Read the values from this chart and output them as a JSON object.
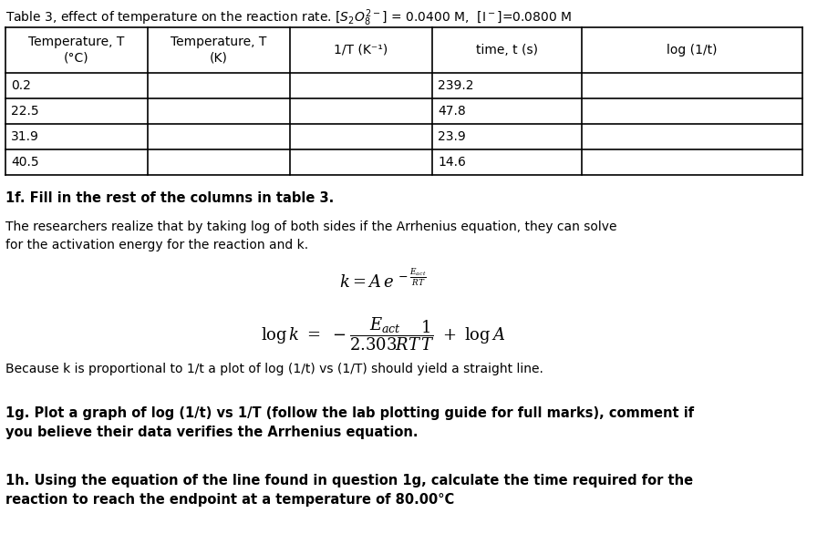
{
  "title_line": "Table 3, effect of temperature on the reaction rate. [$S_2O_8^{2-}$] = 0.0400 M,  [I⁻]=0.0800 M",
  "col_headers": [
    "Temperature, T\n(°C)",
    "Temperature, T\n(K)",
    "1/T (K⁻¹)",
    "time, t (s)",
    "log (1/t)"
  ],
  "temp_c": [
    "0.2",
    "22.5",
    "31.9",
    "40.5"
  ],
  "time_s": [
    "239.2",
    "47.8",
    "23.9",
    "14.6"
  ],
  "question_1f": "1f. Fill in the rest of the columns in table 3.",
  "para_text": "The researchers realize that by taking log of both sides if the Arrhenius equation, they can solve\nfor the activation energy for the reaction and k.",
  "proportional_text": "Because k is proportional to 1/t a plot of log (1/t) vs (1/T) should yield a straight line.",
  "question_1g": "1g. Plot a graph of log (1/t) vs 1/T (follow the lab plotting guide for full marks), comment if\nyou believe their data verifies the Arrhenius equation.",
  "question_1h": "1h. Using the equation of the line found in question 1g, calculate the time required for the\nreaction to reach the endpoint at a temperature of 80.00°C",
  "bg_color": "#ffffff",
  "text_color": "#000000",
  "table_border_color": "#000000"
}
